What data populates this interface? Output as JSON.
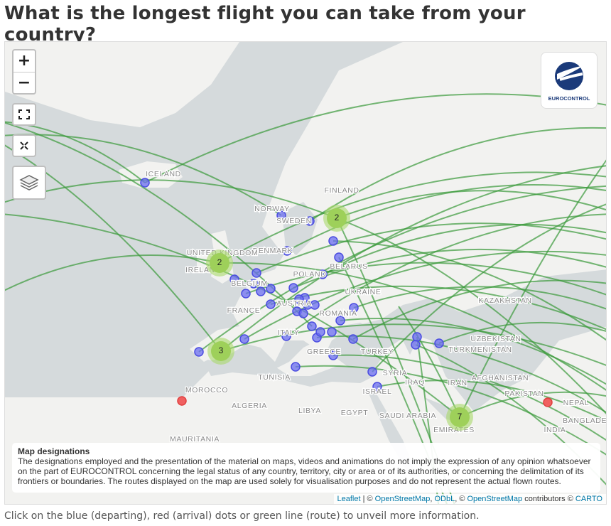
{
  "header": {
    "title": "What is the longest flight you can take from your country?"
  },
  "map": {
    "controls": {
      "zoom_in": "+",
      "zoom_out": "−"
    },
    "logo": "EUROCONTROL",
    "labels": [
      "ICELAND",
      "NORWAY",
      "SWEDEN",
      "FINLAND",
      "DENMARK",
      "UNITED KINGDOM",
      "IRELAND",
      "BELARUS",
      "POLAND",
      "BELGIUM",
      "UKRAINE",
      "FRANCE",
      "AUSTRIA",
      "ROMANIA",
      "ITALY",
      "GREECE",
      "TURKEY",
      "KAZAKHSTAN",
      "UZBEKISTAN",
      "TURKMENISTAN",
      "TUNISIA",
      "SYRIA",
      "IRAQ",
      "ISRAEL",
      "IRAN",
      "AFGHANISTAN",
      "PAKISTAN",
      "NEPAL",
      "MOROCCO",
      "ALGERIA",
      "LIBYA",
      "EGYPT",
      "SAUDI ARABIA",
      "EMIRATES",
      "INDIA",
      "BANGLADESH",
      "MAURITANIA"
    ],
    "clusters": [
      2,
      2,
      3,
      7
    ],
    "disclaimer": {
      "title": "Map designations",
      "text": "The designations employed and the presentation of the material on maps, videos and animations do not imply the expression of any opinion whatsoever on the part of EUROCONTROL concerning the legal status of any country, territory, city or area or of its authorities, or concerning the delimitation of its frontiers or boundaries. The routes displayed on the map are used solely for visualisation purposes and do not represent the actual flown routes."
    },
    "attribution": [
      "Leaflet",
      " | © ",
      "OpenStreetMap",
      ", ",
      "ODbL",
      ", © ",
      "OpenStreetMap",
      " contributors © ",
      "CARTO"
    ]
  },
  "footer": {
    "caption": "Click on the blue (departing), red (arrival) dots or green line (route) to unveil more information."
  }
}
